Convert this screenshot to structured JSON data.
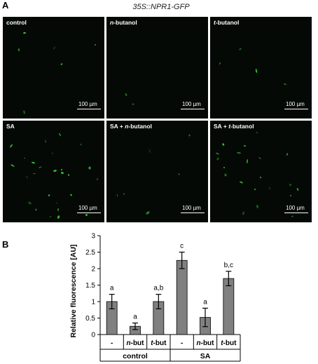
{
  "panel_a": {
    "letter": "A",
    "title": "35S::NPR1-GFP",
    "scale_label": "100 µm",
    "images": [
      {
        "label": "control",
        "italic_part": "",
        "suffix": "",
        "cells": 6
      },
      {
        "label": "",
        "italic_part": "n",
        "suffix": "-butanol",
        "cells": 2
      },
      {
        "label": "",
        "italic_part": "t",
        "suffix": "-butanol",
        "cells": 4
      },
      {
        "label": "SA",
        "italic_part": "",
        "suffix": "",
        "cells": 26
      },
      {
        "label": "SA + ",
        "italic_part": "n",
        "suffix": "-butanol",
        "cells": 6
      },
      {
        "label": "SA + ",
        "italic_part": "t",
        "suffix": "-butanol",
        "cells": 22
      }
    ]
  },
  "panel_b": {
    "letter": "B",
    "group_labels": [
      "control",
      "SA"
    ],
    "tick_labels": [
      {
        "italic": "",
        "text": "-"
      },
      {
        "italic": "n",
        "text": "-but"
      },
      {
        "italic": "t",
        "text": "-but"
      },
      {
        "italic": "",
        "text": "-"
      },
      {
        "italic": "n",
        "text": "-but"
      },
      {
        "italic": "t",
        "text": "-but"
      }
    ]
  },
  "chart_data": {
    "type": "bar",
    "ylabel": "Relative fluorescence [AU]",
    "ylim": [
      0,
      3
    ],
    "yticks": [
      "0",
      "0.5",
      "1",
      "1.5",
      "2",
      "2.5",
      "3"
    ],
    "categories": [
      "-",
      "n-but",
      "t-but",
      "-",
      "n-but",
      "t-but"
    ],
    "groups": [
      "control",
      "SA"
    ],
    "values": [
      1.0,
      0.25,
      1.0,
      2.25,
      0.52,
      1.7
    ],
    "errors": [
      0.22,
      0.1,
      0.22,
      0.25,
      0.28,
      0.22
    ],
    "significance": [
      "a",
      "a",
      "a,b",
      "c",
      "a",
      "b,c"
    ],
    "bar_color": "#808080",
    "grid": false
  }
}
